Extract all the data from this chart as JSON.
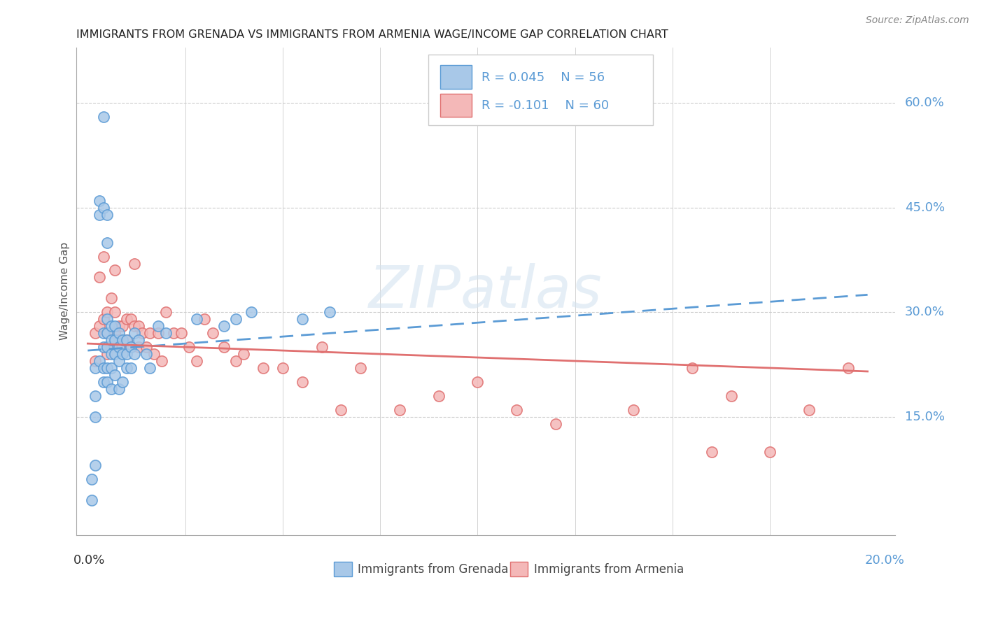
{
  "title": "IMMIGRANTS FROM GRENADA VS IMMIGRANTS FROM ARMENIA WAGE/INCOME GAP CORRELATION CHART",
  "source": "Source: ZipAtlas.com",
  "ylabel": "Wage/Income Gap",
  "ytick_vals": [
    0.15,
    0.3,
    0.45,
    0.6
  ],
  "ytick_labels": [
    "15.0%",
    "30.0%",
    "45.0%",
    "60.0%"
  ],
  "xlim": [
    0.0,
    0.2
  ],
  "ylim": [
    -0.02,
    0.68
  ],
  "watermark": "ZIPatlas",
  "legend_label1": "Immigrants from Grenada",
  "legend_label2": "Immigrants from Armenia",
  "blue_fill": "#a8c8e8",
  "blue_edge": "#5b9bd5",
  "pink_fill": "#f4b8b8",
  "pink_edge": "#e07070",
  "blue_line": "#5b9bd5",
  "pink_line": "#e07070",
  "grid_color": "#cccccc",
  "title_color": "#222222",
  "source_color": "#888888",
  "axis_label_color": "#555555",
  "right_label_color": "#5b9bd5",
  "legend_text_color": "#5b9bd5",
  "bottom_label_color": "#555555",
  "grenada_x": [
    0.001,
    0.001,
    0.002,
    0.002,
    0.002,
    0.002,
    0.003,
    0.003,
    0.003,
    0.004,
    0.004,
    0.004,
    0.004,
    0.004,
    0.004,
    0.005,
    0.005,
    0.005,
    0.005,
    0.005,
    0.005,
    0.005,
    0.006,
    0.006,
    0.006,
    0.006,
    0.006,
    0.007,
    0.007,
    0.007,
    0.007,
    0.008,
    0.008,
    0.008,
    0.008,
    0.009,
    0.009,
    0.009,
    0.01,
    0.01,
    0.01,
    0.011,
    0.011,
    0.012,
    0.012,
    0.013,
    0.015,
    0.016,
    0.018,
    0.02,
    0.028,
    0.035,
    0.038,
    0.042,
    0.055,
    0.062
  ],
  "grenada_y": [
    0.03,
    0.06,
    0.22,
    0.18,
    0.15,
    0.08,
    0.46,
    0.44,
    0.23,
    0.58,
    0.45,
    0.27,
    0.25,
    0.22,
    0.2,
    0.44,
    0.4,
    0.29,
    0.27,
    0.25,
    0.22,
    0.2,
    0.28,
    0.26,
    0.24,
    0.22,
    0.19,
    0.28,
    0.26,
    0.24,
    0.21,
    0.27,
    0.25,
    0.23,
    0.19,
    0.26,
    0.24,
    0.2,
    0.26,
    0.24,
    0.22,
    0.25,
    0.22,
    0.27,
    0.24,
    0.26,
    0.24,
    0.22,
    0.28,
    0.27,
    0.29,
    0.28,
    0.29,
    0.3,
    0.29,
    0.3
  ],
  "armenia_x": [
    0.002,
    0.002,
    0.003,
    0.003,
    0.004,
    0.004,
    0.005,
    0.005,
    0.005,
    0.006,
    0.006,
    0.007,
    0.007,
    0.007,
    0.008,
    0.008,
    0.009,
    0.009,
    0.01,
    0.01,
    0.011,
    0.011,
    0.012,
    0.012,
    0.013,
    0.013,
    0.014,
    0.015,
    0.016,
    0.017,
    0.018,
    0.019,
    0.02,
    0.022,
    0.024,
    0.026,
    0.028,
    0.03,
    0.032,
    0.035,
    0.038,
    0.04,
    0.045,
    0.05,
    0.055,
    0.06,
    0.065,
    0.07,
    0.08,
    0.09,
    0.1,
    0.11,
    0.12,
    0.14,
    0.155,
    0.16,
    0.165,
    0.175,
    0.185,
    0.195
  ],
  "armenia_y": [
    0.27,
    0.23,
    0.35,
    0.28,
    0.38,
    0.29,
    0.3,
    0.27,
    0.24,
    0.32,
    0.25,
    0.36,
    0.3,
    0.27,
    0.28,
    0.26,
    0.28,
    0.25,
    0.29,
    0.26,
    0.29,
    0.25,
    0.37,
    0.28,
    0.28,
    0.25,
    0.27,
    0.25,
    0.27,
    0.24,
    0.27,
    0.23,
    0.3,
    0.27,
    0.27,
    0.25,
    0.23,
    0.29,
    0.27,
    0.25,
    0.23,
    0.24,
    0.22,
    0.22,
    0.2,
    0.25,
    0.16,
    0.22,
    0.16,
    0.18,
    0.2,
    0.16,
    0.14,
    0.16,
    0.22,
    0.1,
    0.18,
    0.1,
    0.16,
    0.22
  ],
  "grenada_trend_x": [
    0.0,
    0.2
  ],
  "grenada_trend_y": [
    0.245,
    0.325
  ],
  "armenia_trend_x": [
    0.0,
    0.2
  ],
  "armenia_trend_y": [
    0.255,
    0.215
  ]
}
